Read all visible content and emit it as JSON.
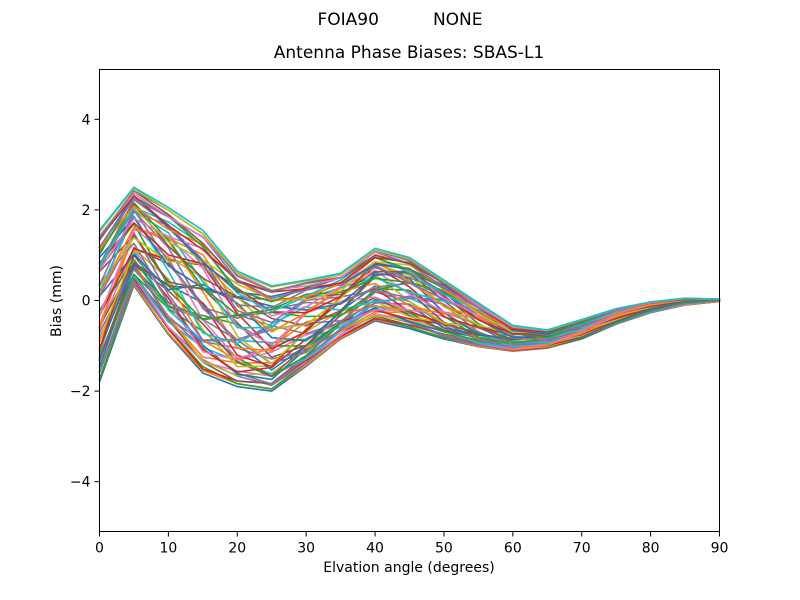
{
  "figure": {
    "suptitle": "FOIA90          NONE"
  },
  "chart_data": {
    "type": "line",
    "title": "Antenna Phase Biases: SBAS-L1",
    "xlabel": "Elvation angle (degrees)",
    "ylabel": "Bias (mm)",
    "xlim": [
      0,
      90
    ],
    "ylim": [
      -5.1,
      5.1
    ],
    "xticks": [
      0,
      10,
      20,
      30,
      40,
      50,
      60,
      70,
      80,
      90
    ],
    "yticks": [
      -4,
      -2,
      0,
      2,
      4
    ],
    "grid": false,
    "legend": null,
    "x": [
      0,
      5,
      10,
      15,
      20,
      25,
      30,
      35,
      40,
      45,
      50,
      55,
      60,
      65,
      70,
      75,
      80,
      85,
      90
    ],
    "envelope_top": [
      1.55,
      2.5,
      2.05,
      1.55,
      0.65,
      0.32,
      0.45,
      0.6,
      1.15,
      0.95,
      0.45,
      -0.05,
      -0.55,
      -0.65,
      -0.42,
      -0.18,
      -0.03,
      0.05,
      0.03
    ],
    "envelope_bottom": [
      -1.8,
      0.33,
      -0.75,
      -1.6,
      -1.9,
      -2.0,
      -1.45,
      -0.85,
      -0.45,
      -0.62,
      -0.85,
      -1.02,
      -1.12,
      -1.05,
      -0.85,
      -0.52,
      -0.27,
      -0.1,
      -0.02
    ],
    "ensemble": {
      "count": 60,
      "wiggle_fraction": 0.45,
      "wiggle_wavelength_deg": 24,
      "line_width": 1.6
    },
    "colors": [
      "#1f77b4",
      "#ff7f0e",
      "#2ca02c",
      "#d62728",
      "#9467bd",
      "#8c564b",
      "#e377c2",
      "#7f7f7f",
      "#bcbd22",
      "#17becf"
    ],
    "axis_color": "#000000",
    "tick_label_color": "#000000"
  },
  "layout_values": {
    "tick_length": 5
  }
}
